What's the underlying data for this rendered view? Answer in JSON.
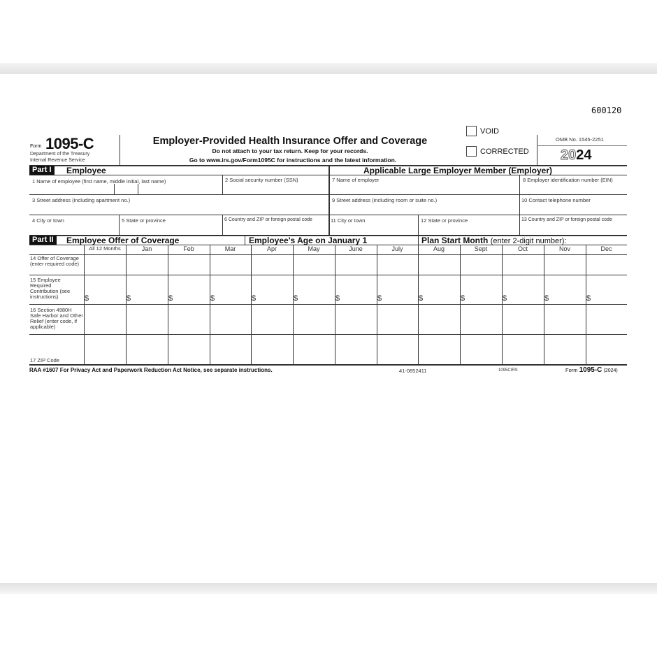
{
  "form_number": "600120",
  "header": {
    "form_word": "Form",
    "form_id": "1095-C",
    "dept1": "Department of the Treasury",
    "dept2": "Internal Revenue Service",
    "title": "Employer-Provided Health Insurance Offer and Coverage",
    "subtitle1": "Do not attach to your tax return. Keep for your records.",
    "subtitle2": "Go to www.irs.gov/Form1095C for instructions and the latest information.",
    "void_label": "VOID",
    "corrected_label": "CORRECTED",
    "omb": "OMB No. 1545-2251",
    "year_outline": "20",
    "year_bold": "24"
  },
  "part1": {
    "tag": "Part I",
    "title": "Employee",
    "employer_title": "Applicable Large Employer Member (Employer)",
    "boxes": [
      "1 Name of employee (first name, middle initial, last name)",
      "2 Social security number (SSN)",
      "7 Name of employer",
      "8 Employer identification number (EIN)",
      "3 Street address (including apartment no.)",
      "9 Street address (including room or suite no.)",
      "10 Contact telephone number",
      "4 City or town",
      "5 State or province",
      "6 Country and ZIP or foreign postal code",
      "11 City or town",
      "12 State or province",
      "13 Country and ZIP or foreign postal code"
    ]
  },
  "part2": {
    "tag": "Part II",
    "title": "Employee Offer of Coverage",
    "age_label": "Employee's Age on January 1",
    "plan_label": "Plan Start Month",
    "plan_hint": "(enter 2-digit number):",
    "months": [
      "All 12 Months",
      "Jan",
      "Feb",
      "Mar",
      "Apr",
      "May",
      "June",
      "July",
      "Aug",
      "Sept",
      "Oct",
      "Nov",
      "Dec"
    ],
    "rows": [
      "14 Offer of Coverage (enter required code)",
      "15 Employee Required Contribution (see instructions)",
      "16 Section 4980H Safe Harbor and Other Relief (enter code, if applicable)",
      "17 ZIP Code"
    ],
    "currency": "$"
  },
  "footer": {
    "left": "RAA #1607  For Privacy Act and Paperwork Reduction Act Notice, see separate instructions.",
    "cat": "41-0852411",
    "code": "1095CIRS",
    "form_word": "Form",
    "form_id": "1095-C",
    "year": "(2024)"
  }
}
